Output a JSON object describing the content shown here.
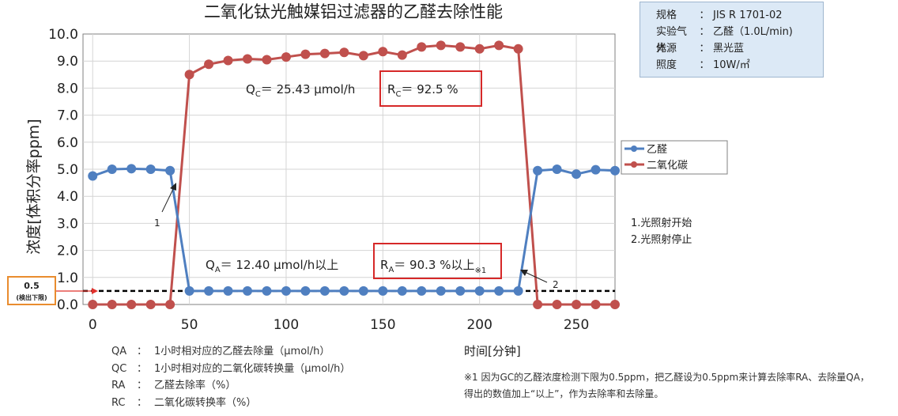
{
  "chart_data": {
    "type": "line",
    "title": "二氧化钛光触媒铝过滤器的乙醛去除性能",
    "xlabel": "时间[分钟]",
    "ylabel": "浓度[体积分率ppm]",
    "xlim": [
      -5,
      270
    ],
    "ylim": [
      0,
      10
    ],
    "xticks": [
      "0",
      "50",
      "100",
      "150",
      "200",
      "250"
    ],
    "yticks": [
      "0.0",
      "1.0",
      "2.0",
      "3.0",
      "4.0",
      "5.0",
      "6.0",
      "7.0",
      "8.0",
      "9.0",
      "10.0"
    ],
    "grid": true,
    "legend_position": "right",
    "series": [
      {
        "name": "乙醛",
        "color": "#4f7fc0",
        "x": [
          0,
          10,
          20,
          30,
          40,
          50,
          60,
          70,
          80,
          90,
          100,
          110,
          120,
          130,
          140,
          150,
          160,
          170,
          180,
          190,
          200,
          210,
          220,
          230,
          240,
          250,
          260,
          270
        ],
        "y": [
          4.75,
          5.0,
          5.02,
          5.0,
          4.95,
          0.5,
          0.5,
          0.5,
          0.5,
          0.5,
          0.5,
          0.5,
          0.5,
          0.5,
          0.5,
          0.5,
          0.5,
          0.5,
          0.5,
          0.5,
          0.5,
          0.5,
          0.5,
          4.95,
          5.0,
          4.82,
          4.98,
          4.95
        ]
      },
      {
        "name": "二氧化碳",
        "color": "#c0504d",
        "x": [
          0,
          10,
          20,
          30,
          40,
          50,
          60,
          70,
          80,
          90,
          100,
          110,
          120,
          130,
          140,
          150,
          160,
          170,
          180,
          190,
          200,
          210,
          220,
          230,
          240,
          250,
          260,
          270
        ],
        "y": [
          0.0,
          0.0,
          0.0,
          0.0,
          0.0,
          8.5,
          8.88,
          9.02,
          9.08,
          9.05,
          9.15,
          9.25,
          9.28,
          9.32,
          9.2,
          9.35,
          9.22,
          9.52,
          9.58,
          9.52,
          9.45,
          9.58,
          9.45,
          0.0,
          0.0,
          0.0,
          0.0,
          0.0
        ]
      }
    ],
    "detection_limit": {
      "value": 0.5,
      "value_label": "0.5",
      "note": "(検出下限)"
    },
    "annotations": {
      "qc_prefix": "Q",
      "qc_sub": "C",
      "qc_rest": "＝ 25.43 μmol/h",
      "rc_prefix": "R",
      "rc_sub": "C",
      "rc_rest": "＝ 92.5 %",
      "qa_prefix": "Q",
      "qa_sub": "A",
      "qa_rest": "＝ 12.40 μmol/h以上",
      "ra_prefix": "R",
      "ra_sub": "A",
      "ra_rest": "＝ 90.3 %以上",
      "ra_note": "※1",
      "point1": "1",
      "point2": "2"
    }
  },
  "info_box": [
    {
      "key": "规格",
      "colon": "：",
      "value": "JIS R 1701-02"
    },
    {
      "key": "实验气体",
      "colon": "：",
      "value": "乙醛（1.0L/min)"
    },
    {
      "key": "光源",
      "colon": "：",
      "value": "黑光蓝"
    },
    {
      "key": "照度",
      "colon": "：",
      "value": "10W/㎡"
    }
  ],
  "side_notes": [
    "1.光照射开始",
    "2.光照射停止"
  ],
  "definitions": [
    {
      "key": "QA",
      "colon": "：",
      "value": "1小时相对应的乙醛去除量（μmol/h）"
    },
    {
      "key": "QC",
      "colon": "：",
      "value": "1小时相对应的二氧化碳转换量（μmol/h）"
    },
    {
      "key": "RA",
      "colon": "：",
      "value": "乙醛去除率（%）"
    },
    {
      "key": "RC",
      "colon": "：",
      "value": "二氧化碳转换率（%）"
    }
  ],
  "footnote": "※1 因为GC的乙醛浓度检测下限为0.5ppm，把乙醛设为0.5ppm来计算去除率RA、去除量QA，得出的数值加上“以上”，作为去除率和去除量。"
}
